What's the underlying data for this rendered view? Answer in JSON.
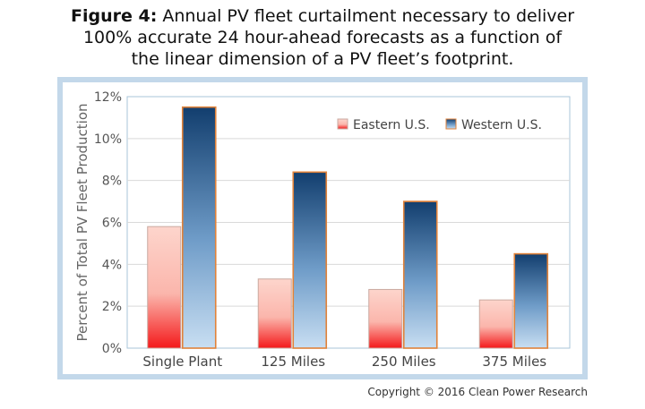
{
  "title": {
    "label": "Figure 4:",
    "line1": "Annual PV fleet curtailment necessary to deliver",
    "line2": "100% accurate 24 hour-ahead forecasts as a function of",
    "line3": "the linear dimension of a PV fleet’s footprint."
  },
  "copyright": "Copyright © 2016 Clean Power Research",
  "colors": {
    "frame": "#c3d8ea",
    "plot_border": "#a9c6da",
    "bar_border": "#e0823a",
    "eastern_top": "#fdd5cc",
    "eastern_bottom": "#f4191b",
    "western_top": "#123e6e",
    "western_bottom": "#c8def2"
  },
  "chart_data": {
    "type": "bar",
    "categories": [
      "Single Plant",
      "125 Miles",
      "250 Miles",
      "375 Miles"
    ],
    "series": [
      {
        "name": "Eastern U.S.",
        "values": [
          5.8,
          3.3,
          2.8,
          2.3
        ]
      },
      {
        "name": "Western U.S.",
        "values": [
          11.5,
          8.4,
          7.0,
          4.5
        ]
      }
    ],
    "title": "",
    "xlabel": "",
    "ylabel": "Percent of Total PV Fleet Production",
    "ylim": [
      0,
      12
    ],
    "yticks": [
      "0%",
      "2%",
      "4%",
      "6%",
      "8%",
      "10%",
      "12%"
    ],
    "grid": true,
    "legend_position": "top-right"
  }
}
